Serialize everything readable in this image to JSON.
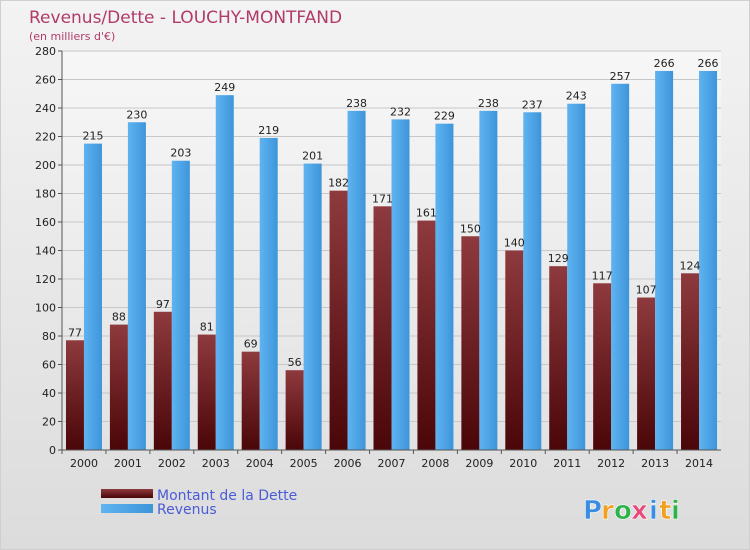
{
  "chart_data": {
    "type": "bar",
    "title": "Revenus/Dette - LOUCHY-MONTFAND",
    "subtitle": "(en milliers d'€)",
    "xlabel": "",
    "ylabel": "",
    "ylim": [
      0,
      280
    ],
    "yticks": [
      "0",
      "20",
      "40",
      "60",
      "80",
      "100",
      "120",
      "140",
      "160",
      "180",
      "200",
      "220",
      "240",
      "260",
      "280"
    ],
    "grid": true,
    "legend_position": "bottom-left",
    "categories": [
      "2000",
      "2001",
      "2002",
      "2003",
      "2004",
      "2005",
      "2006",
      "2007",
      "2008",
      "2009",
      "2010",
      "2011",
      "2012",
      "2013",
      "2014"
    ],
    "series": [
      {
        "name": "Montant de la Dette",
        "color": "#7a1f24",
        "values": [
          77,
          88,
          97,
          81,
          69,
          56,
          182,
          171,
          161,
          150,
          140,
          129,
          117,
          107,
          124
        ],
        "labels": [
          "77",
          "88",
          "97",
          "81",
          "69",
          "56",
          "182",
          "171",
          "161",
          "150",
          "140",
          "129",
          "117",
          "107",
          "124"
        ]
      },
      {
        "name": "Revenus",
        "color": "#4aa3e6",
        "values": [
          215,
          230,
          203,
          249,
          219,
          201,
          238,
          232,
          229,
          238,
          237,
          243,
          257,
          266,
          266
        ],
        "labels": [
          "215",
          "230",
          "203",
          "249",
          "219",
          "201",
          "238",
          "232",
          "229",
          "238",
          "237",
          "243",
          "257",
          "266",
          "266"
        ]
      }
    ]
  },
  "logo": {
    "letters": [
      "P",
      "r",
      "o",
      "x",
      "i",
      "t",
      "i"
    ],
    "colors": [
      "#3a8de0",
      "#f0a020",
      "#2db34a",
      "#e84a7a",
      "#3a8de0",
      "#f0a020",
      "#2db34a"
    ]
  }
}
